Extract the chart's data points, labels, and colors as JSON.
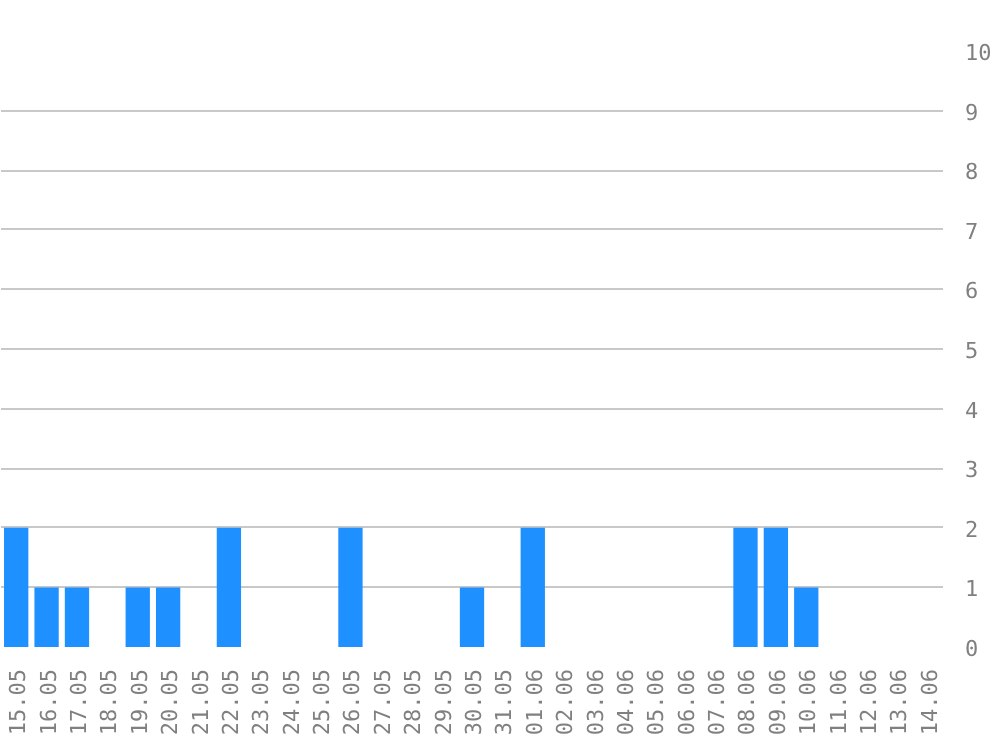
{
  "chart_data": {
    "type": "bar",
    "categories": [
      "15.05",
      "16.05",
      "17.05",
      "18.05",
      "19.05",
      "20.05",
      "21.05",
      "22.05",
      "23.05",
      "24.05",
      "25.05",
      "26.05",
      "27.05",
      "28.05",
      "29.05",
      "30.05",
      "31.05",
      "01.06",
      "02.06",
      "03.06",
      "04.06",
      "05.06",
      "06.06",
      "07.06",
      "08.06",
      "09.06",
      "10.06",
      "11.06",
      "12.06",
      "13.06",
      "14.06"
    ],
    "values": [
      2,
      1,
      1,
      0,
      1,
      1,
      0,
      2,
      0,
      0,
      0,
      2,
      0,
      0,
      0,
      1,
      0,
      2,
      0,
      0,
      0,
      0,
      0,
      0,
      2,
      2,
      1,
      0,
      0,
      0,
      0
    ],
    "color": "#1e90ff",
    "ylim": [
      0,
      10
    ],
    "yticks": [
      0,
      1,
      2,
      3,
      4,
      5,
      6,
      7,
      8,
      9,
      10
    ],
    "grid": "y"
  }
}
